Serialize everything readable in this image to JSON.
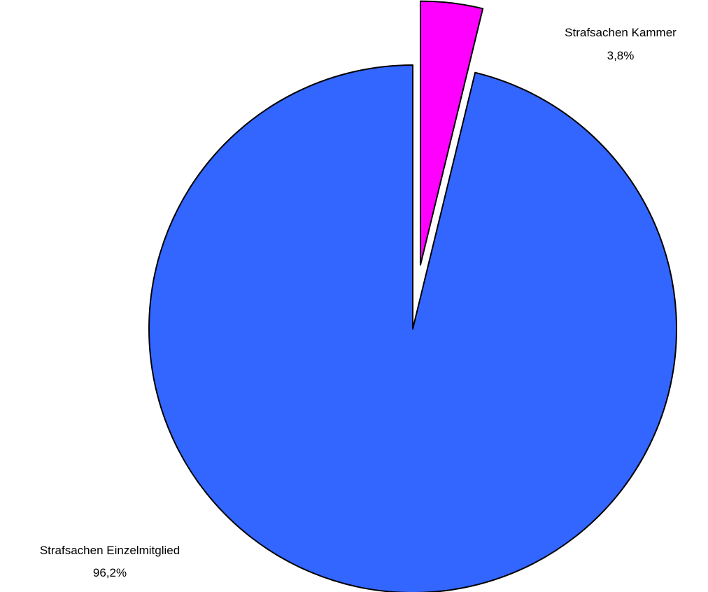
{
  "chart_data": {
    "type": "pie",
    "title": "",
    "slices": [
      {
        "name": "Strafsachen Kammer",
        "value": 3.8,
        "value_label": "3,8%",
        "color": "#ff00ff",
        "exploded": true
      },
      {
        "name": "Strafsachen Einzelmitglied",
        "value": 96.2,
        "value_label": "96,2%",
        "color": "#3366ff",
        "exploded": false
      }
    ],
    "start_angle": "12 o'clock",
    "direction": "clockwise",
    "legend": "none"
  }
}
